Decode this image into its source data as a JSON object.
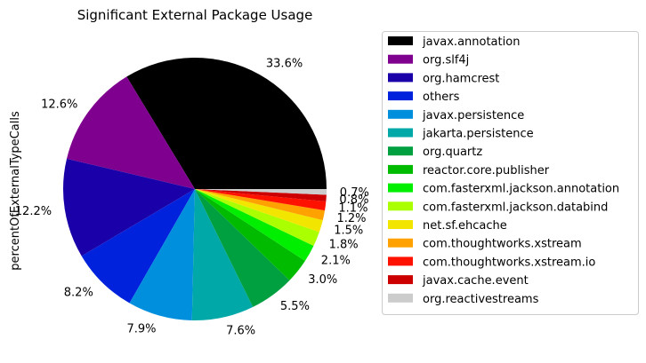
{
  "chart_data": {
    "type": "pie",
    "title": "Significant External Package Usage",
    "ylabel": "percentOfExternalTypeCalls",
    "legend_position": "right",
    "slices": [
      {
        "label": "javax.annotation",
        "value": 33.6,
        "pct_label": "33.6%",
        "color": "#000000"
      },
      {
        "label": "org.slf4j",
        "value": 12.6,
        "pct_label": "12.6%",
        "color": "#7f008f"
      },
      {
        "label": "org.hamcrest",
        "value": 12.2,
        "pct_label": "12.2%",
        "color": "#1a00a8"
      },
      {
        "label": "others",
        "value": 8.2,
        "pct_label": "8.2%",
        "color": "#0022dd"
      },
      {
        "label": "javax.persistence",
        "value": 7.9,
        "pct_label": "7.9%",
        "color": "#008fdd"
      },
      {
        "label": "jakarta.persistence",
        "value": 7.6,
        "pct_label": "7.6%",
        "color": "#00a8a8"
      },
      {
        "label": "org.quartz",
        "value": 5.5,
        "pct_label": "5.5%",
        "color": "#00a040"
      },
      {
        "label": "reactor.core.publisher",
        "value": 3.0,
        "pct_label": "3.0%",
        "color": "#00bb00"
      },
      {
        "label": "com.fasterxml.jackson.annotation",
        "value": 2.1,
        "pct_label": "2.1%",
        "color": "#00ee00"
      },
      {
        "label": "com.fasterxml.jackson.databind",
        "value": 1.8,
        "pct_label": "1.8%",
        "color": "#aaff00"
      },
      {
        "label": "net.sf.ehcache",
        "value": 1.5,
        "pct_label": "1.5%",
        "color": "#f2e600"
      },
      {
        "label": "com.thoughtworks.xstream",
        "value": 1.2,
        "pct_label": "1.2%",
        "color": "#ffa200"
      },
      {
        "label": "com.thoughtworks.xstream.io",
        "value": 1.1,
        "pct_label": "1.1%",
        "color": "#ff1100"
      },
      {
        "label": "javax.cache.event",
        "value": 0.8,
        "pct_label": "0.8%",
        "color": "#cc0000"
      },
      {
        "label": "org.reactivestreams",
        "value": 0.7,
        "pct_label": "0.7%",
        "color": "#cccccc"
      }
    ]
  }
}
